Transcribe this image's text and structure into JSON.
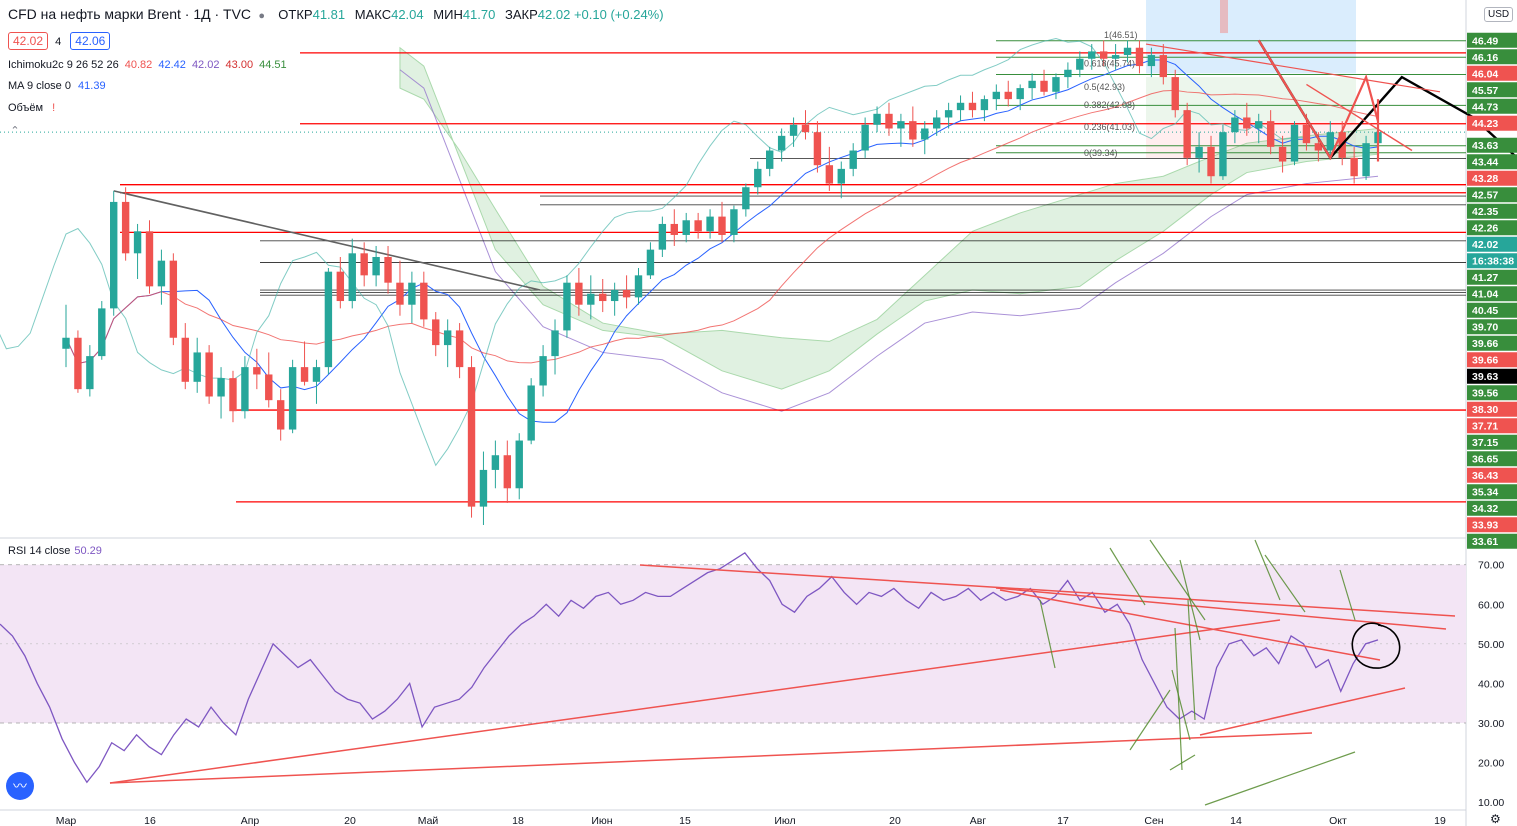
{
  "header": {
    "title": "CFD на нефть марки Brent · 1Д · TVC",
    "open_label": "ОТКР",
    "open": "41.81",
    "high_label": "МАКС",
    "high": "42.04",
    "low_label": "МИН",
    "low": "41.70",
    "close_label": "ЗАКР",
    "close": "42.02",
    "change": "+0.10 (+0.24%)",
    "bid": "42.02",
    "spread": "4",
    "ask": "42.06",
    "currency": "USD"
  },
  "indicators": {
    "ichimoku_label": "Ichimoku2c 9 26 52 26",
    "ichimoku_values": [
      "40.82",
      "42.42",
      "42.02",
      "43.00",
      "44.51"
    ],
    "ma_label": "MA 9 close 0",
    "ma_value": "41.39",
    "volume_label": "Объём",
    "rsi_label": "RSI 14 close",
    "rsi_value": "50.29"
  },
  "colors": {
    "up": "#26a69a",
    "down": "#ef5350",
    "cloud": "#c8e6c9",
    "cloud_line": "#66bb6a",
    "kumo_lower": "#9575cd",
    "rsi_line": "#7e57c2",
    "rsi_band": "#f3e5f5",
    "fib_box": "#bbdefb",
    "level_red": "#ff0000",
    "level_black": "#000000"
  },
  "chart_data": [
    {
      "type": "candlestick",
      "title": "CFD на нефть марки Brent · 1Д · TVC",
      "ylim": [
        33.0,
        47.6
      ],
      "price_axis_labels": [
        {
          "value": "46.49",
          "bg": "#388e3c"
        },
        {
          "value": "46.16",
          "bg": "#388e3c"
        },
        {
          "value": "46.04",
          "bg": "#ef5350"
        },
        {
          "value": "45.57",
          "bg": "#388e3c"
        },
        {
          "value": "44.73",
          "bg": "#388e3c"
        },
        {
          "value": "44.23",
          "bg": "#ef5350"
        },
        {
          "value": "43.63",
          "bg": "#388e3c"
        },
        {
          "value": "43.44",
          "bg": "#388e3c"
        },
        {
          "value": "43.28",
          "bg": "#ef5350"
        },
        {
          "value": "42.57",
          "bg": "#388e3c"
        },
        {
          "value": "42.35",
          "bg": "#388e3c"
        },
        {
          "value": "42.26",
          "bg": "#388e3c"
        },
        {
          "value": "42.02",
          "bg": "#26a69a"
        },
        {
          "value": "16:38:38",
          "bg": "#26a69a"
        },
        {
          "value": "41.27",
          "bg": "#388e3c"
        },
        {
          "value": "41.04",
          "bg": "#388e3c"
        },
        {
          "value": "40.45",
          "bg": "#388e3c"
        },
        {
          "value": "39.70",
          "bg": "#388e3c"
        },
        {
          "value": "39.66",
          "bg": "#388e3c"
        },
        {
          "value": "39.66",
          "bg": "#ef5350"
        },
        {
          "value": "39.63",
          "bg": "#000000"
        },
        {
          "value": "39.56",
          "bg": "#388e3c"
        },
        {
          "value": "38.30",
          "bg": "#ef5350"
        },
        {
          "value": "37.71",
          "bg": "#ef5350"
        },
        {
          "value": "37.15",
          "bg": "#388e3c"
        },
        {
          "value": "36.65",
          "bg": "#388e3c"
        },
        {
          "value": "36.43",
          "bg": "#ef5350"
        },
        {
          "value": "35.34",
          "bg": "#388e3c"
        },
        {
          "value": "34.32",
          "bg": "#388e3c"
        },
        {
          "value": "33.93",
          "bg": "#ef5350"
        },
        {
          "value": "33.61",
          "bg": "#388e3c"
        }
      ],
      "x_labels": [
        "Мар",
        "16",
        "Апр",
        "20",
        "Май",
        "18",
        "Июн",
        "15",
        "Июл",
        "20",
        "Авг",
        "17",
        "Сен",
        "14",
        "Окт",
        "19"
      ],
      "fib_labels": [
        "1(46.51)",
        "0.618(45.74)",
        "0.5(42.93)",
        "0.382(42.08)",
        "0.236(41.03)",
        "0(39.34)"
      ],
      "levels_red": [
        46.16,
        44.23,
        42.57,
        42.35,
        41.27,
        36.43,
        33.93
      ],
      "levels_black": [
        43.28,
        42.26,
        42.02,
        41.04,
        40.45,
        39.7,
        39.63,
        39.56
      ],
      "levels_green": [
        46.49,
        46.04,
        45.57,
        44.73,
        43.63,
        43.44
      ],
      "candles": [
        [
          38.1,
          39.3,
          37.6,
          38.4
        ],
        [
          38.4,
          38.6,
          36.9,
          37.0
        ],
        [
          37.0,
          38.2,
          36.8,
          37.9
        ],
        [
          37.9,
          39.4,
          37.8,
          39.2
        ],
        [
          39.2,
          42.4,
          39.0,
          42.1
        ],
        [
          42.1,
          42.5,
          40.5,
          40.7
        ],
        [
          40.7,
          41.5,
          40.0,
          41.3
        ],
        [
          41.3,
          41.6,
          39.6,
          39.8
        ],
        [
          39.8,
          40.8,
          39.3,
          40.5
        ],
        [
          40.5,
          40.7,
          38.2,
          38.4
        ],
        [
          38.4,
          38.8,
          37.0,
          37.2
        ],
        [
          37.2,
          38.4,
          36.9,
          38.0
        ],
        [
          38.0,
          38.2,
          36.6,
          36.8
        ],
        [
          36.8,
          37.6,
          36.2,
          37.3
        ],
        [
          37.3,
          37.5,
          36.1,
          36.4
        ],
        [
          36.4,
          37.9,
          36.2,
          37.6
        ],
        [
          37.6,
          38.1,
          37.0,
          37.4
        ],
        [
          37.4,
          38.0,
          36.5,
          36.7
        ],
        [
          36.7,
          37.0,
          35.6,
          35.9
        ],
        [
          35.9,
          37.8,
          35.8,
          37.6
        ],
        [
          37.6,
          38.3,
          37.1,
          37.2
        ],
        [
          37.2,
          37.8,
          36.6,
          37.6
        ],
        [
          37.6,
          40.3,
          37.4,
          40.2
        ],
        [
          40.2,
          40.6,
          39.2,
          39.4
        ],
        [
          39.4,
          41.1,
          39.2,
          40.7
        ],
        [
          40.7,
          41.0,
          39.8,
          40.1
        ],
        [
          40.1,
          40.9,
          39.8,
          40.6
        ],
        [
          40.6,
          40.9,
          39.6,
          39.9
        ],
        [
          39.9,
          40.5,
          39.0,
          39.3
        ],
        [
          39.3,
          40.2,
          38.8,
          39.9
        ],
        [
          39.9,
          40.2,
          38.7,
          38.9
        ],
        [
          38.9,
          39.1,
          37.9,
          38.2
        ],
        [
          38.2,
          38.9,
          37.6,
          38.6
        ],
        [
          38.6,
          38.8,
          37.3,
          37.6
        ],
        [
          37.6,
          37.9,
          33.5,
          33.8
        ],
        [
          33.8,
          35.3,
          33.3,
          34.8
        ],
        [
          34.8,
          35.6,
          34.3,
          35.2
        ],
        [
          35.2,
          35.6,
          33.9,
          34.3
        ],
        [
          34.3,
          35.8,
          34.0,
          35.6
        ],
        [
          35.6,
          37.3,
          35.5,
          37.1
        ],
        [
          37.1,
          38.2,
          36.8,
          37.9
        ],
        [
          37.9,
          38.9,
          37.4,
          38.6
        ],
        [
          38.6,
          40.1,
          38.4,
          39.9
        ],
        [
          39.9,
          40.3,
          39.0,
          39.3
        ],
        [
          39.3,
          40.1,
          38.9,
          39.6
        ],
        [
          39.6,
          40.0,
          39.1,
          39.4
        ],
        [
          39.4,
          39.9,
          39.0,
          39.7
        ],
        [
          39.7,
          40.1,
          39.2,
          39.5
        ],
        [
          39.5,
          40.3,
          39.3,
          40.1
        ],
        [
          40.1,
          41.0,
          40.0,
          40.8
        ],
        [
          40.8,
          41.7,
          40.6,
          41.5
        ],
        [
          41.5,
          41.9,
          40.9,
          41.2
        ],
        [
          41.2,
          41.8,
          41.0,
          41.6
        ],
        [
          41.6,
          41.8,
          41.1,
          41.3
        ],
        [
          41.3,
          41.9,
          41.1,
          41.7
        ],
        [
          41.7,
          42.1,
          41.0,
          41.2
        ],
        [
          41.2,
          42.0,
          41.0,
          41.9
        ],
        [
          41.9,
          42.6,
          41.7,
          42.5
        ],
        [
          42.5,
          43.2,
          42.3,
          43.0
        ],
        [
          43.0,
          43.6,
          42.8,
          43.5
        ],
        [
          43.5,
          44.1,
          43.2,
          43.9
        ],
        [
          43.9,
          44.4,
          43.6,
          44.2
        ],
        [
          44.2,
          44.6,
          43.8,
          44.0
        ],
        [
          44.0,
          44.3,
          42.9,
          43.1
        ],
        [
          43.1,
          43.6,
          42.4,
          42.6
        ],
        [
          42.6,
          43.2,
          42.2,
          43.0
        ],
        [
          43.0,
          43.7,
          42.8,
          43.5
        ],
        [
          43.5,
          44.4,
          43.3,
          44.2
        ],
        [
          44.2,
          44.7,
          44.0,
          44.5
        ],
        [
          44.5,
          44.8,
          43.9,
          44.1
        ],
        [
          44.1,
          44.5,
          43.6,
          44.3
        ],
        [
          44.3,
          44.7,
          43.6,
          43.8
        ],
        [
          43.8,
          44.3,
          43.4,
          44.1
        ],
        [
          44.1,
          44.6,
          43.9,
          44.4
        ],
        [
          44.4,
          44.8,
          44.1,
          44.6
        ],
        [
          44.6,
          45.0,
          44.3,
          44.8
        ],
        [
          44.8,
          45.1,
          44.4,
          44.6
        ],
        [
          44.6,
          45.0,
          44.3,
          44.9
        ],
        [
          44.9,
          45.3,
          44.6,
          45.1
        ],
        [
          45.1,
          45.4,
          44.7,
          44.9
        ],
        [
          44.9,
          45.3,
          44.6,
          45.2
        ],
        [
          45.2,
          45.6,
          44.9,
          45.4
        ],
        [
          45.4,
          45.7,
          45.0,
          45.1
        ],
        [
          45.1,
          45.6,
          44.9,
          45.5
        ],
        [
          45.5,
          45.9,
          45.2,
          45.7
        ],
        [
          45.7,
          46.2,
          45.5,
          46.0
        ],
        [
          46.0,
          46.4,
          45.7,
          46.2
        ],
        [
          46.2,
          46.5,
          45.8,
          46.0
        ],
        [
          46.0,
          46.4,
          45.7,
          46.1
        ],
        [
          46.1,
          46.5,
          45.9,
          46.3
        ],
        [
          46.3,
          46.5,
          45.6,
          45.8
        ],
        [
          45.8,
          46.3,
          45.5,
          46.1
        ],
        [
          46.1,
          46.4,
          45.3,
          45.5
        ],
        [
          45.5,
          45.7,
          44.4,
          44.6
        ],
        [
          44.6,
          44.8,
          43.1,
          43.3
        ],
        [
          43.3,
          44.0,
          42.9,
          43.6
        ],
        [
          43.6,
          43.9,
          42.6,
          42.8
        ],
        [
          42.8,
          44.2,
          42.7,
          44.0
        ],
        [
          44.0,
          44.6,
          43.7,
          44.4
        ],
        [
          44.4,
          44.8,
          43.9,
          44.1
        ],
        [
          44.1,
          44.5,
          43.7,
          44.3
        ],
        [
          44.3,
          44.6,
          43.4,
          43.6
        ],
        [
          43.6,
          43.9,
          42.9,
          43.2
        ],
        [
          43.2,
          44.3,
          43.1,
          44.2
        ],
        [
          44.2,
          44.5,
          43.5,
          43.7
        ],
        [
          43.7,
          44.0,
          43.2,
          43.5
        ],
        [
          43.5,
          44.3,
          43.3,
          44.0
        ],
        [
          44.0,
          44.3,
          43.1,
          43.3
        ],
        [
          43.3,
          43.6,
          42.6,
          42.8
        ],
        [
          42.8,
          43.9,
          42.7,
          43.7
        ],
        [
          43.7,
          44.2,
          43.4,
          44.0
        ]
      ]
    },
    {
      "type": "line",
      "title": "RSI 14 close",
      "ylim": [
        8,
        76
      ],
      "y_ticks": [
        "70.00",
        "60.00",
        "50.00",
        "40.00",
        "30.00",
        "20.00",
        "10.00"
      ],
      "band": [
        30,
        70
      ],
      "series": [
        {
          "name": "RSI 14 close",
          "values": [
            55,
            52,
            47,
            40,
            34,
            26,
            20,
            15,
            19,
            25,
            23,
            27,
            24,
            22,
            27,
            31,
            29,
            34,
            30,
            27,
            36,
            43,
            50,
            47,
            44,
            46,
            42,
            38,
            36,
            35,
            31,
            33,
            36,
            40,
            29,
            34,
            35,
            36,
            39,
            44,
            48,
            52,
            55,
            57,
            60,
            57,
            61,
            59,
            62,
            63,
            60,
            61,
            63,
            62,
            62,
            64,
            66,
            68,
            69,
            71,
            73,
            69,
            66,
            60,
            58,
            62,
            64,
            67,
            63,
            60,
            63,
            62,
            64,
            61,
            59,
            63,
            61,
            62,
            64,
            61,
            63,
            61,
            62,
            64,
            60,
            62,
            66,
            61,
            63,
            58,
            60,
            55,
            46,
            40,
            34,
            31,
            33,
            31,
            44,
            50,
            51,
            47,
            49,
            45,
            52,
            50,
            44,
            46,
            38,
            45,
            50,
            51
          ]
        }
      ]
    }
  ]
}
